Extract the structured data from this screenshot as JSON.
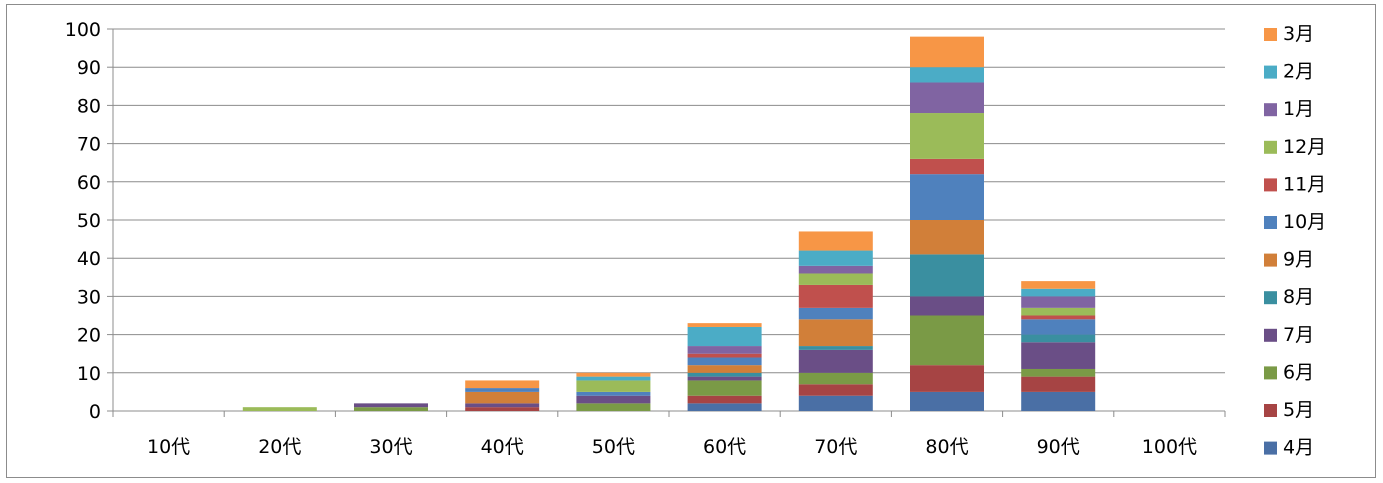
{
  "chart_data": {
    "type": "bar",
    "stacked": true,
    "categories": [
      "10代",
      "20代",
      "30代",
      "40代",
      "50代",
      "60代",
      "70代",
      "80代",
      "90代",
      "100代"
    ],
    "ylim": [
      0,
      100
    ],
    "yticks": [
      0,
      10,
      20,
      30,
      40,
      50,
      60,
      70,
      80,
      90,
      100
    ],
    "grid": true,
    "legend_position": "right",
    "series": [
      {
        "name": "4月",
        "color": "#4a6fa5",
        "values": [
          0,
          0,
          0,
          0,
          0,
          2,
          4,
          5,
          5,
          0
        ]
      },
      {
        "name": "5月",
        "color": "#a64444",
        "values": [
          0,
          0,
          0,
          1,
          0,
          2,
          3,
          7,
          4,
          0
        ]
      },
      {
        "name": "6月",
        "color": "#7a9a46",
        "values": [
          0,
          0,
          1,
          0,
          2,
          4,
          3,
          13,
          2,
          0
        ]
      },
      {
        "name": "7月",
        "color": "#6a4e86",
        "values": [
          0,
          0,
          1,
          1,
          2,
          1,
          6,
          5,
          7,
          0
        ]
      },
      {
        "name": "8月",
        "color": "#3a8fa0",
        "values": [
          0,
          0,
          0,
          0,
          0,
          1,
          1,
          11,
          2,
          0
        ]
      },
      {
        "name": "9月",
        "color": "#d17f39",
        "values": [
          0,
          0,
          0,
          3,
          0,
          2,
          7,
          9,
          0,
          0
        ]
      },
      {
        "name": "10月",
        "color": "#4f81bd",
        "values": [
          0,
          0,
          0,
          1,
          1,
          2,
          3,
          12,
          4,
          0
        ]
      },
      {
        "name": "11月",
        "color": "#c0504d",
        "values": [
          0,
          0,
          0,
          0,
          0,
          1,
          6,
          4,
          1,
          0
        ]
      },
      {
        "name": "12月",
        "color": "#9bbb59",
        "values": [
          0,
          1,
          0,
          0,
          3,
          0,
          3,
          12,
          2,
          0
        ]
      },
      {
        "name": "1月",
        "color": "#8064a2",
        "values": [
          0,
          0,
          0,
          0,
          0,
          2,
          2,
          8,
          3,
          0
        ]
      },
      {
        "name": "2月",
        "color": "#4bacc6",
        "values": [
          0,
          0,
          0,
          0,
          1,
          5,
          4,
          4,
          2,
          0
        ]
      },
      {
        "name": "3月",
        "color": "#f79646",
        "values": [
          0,
          0,
          0,
          2,
          1,
          1,
          5,
          8,
          2,
          0
        ]
      }
    ]
  }
}
